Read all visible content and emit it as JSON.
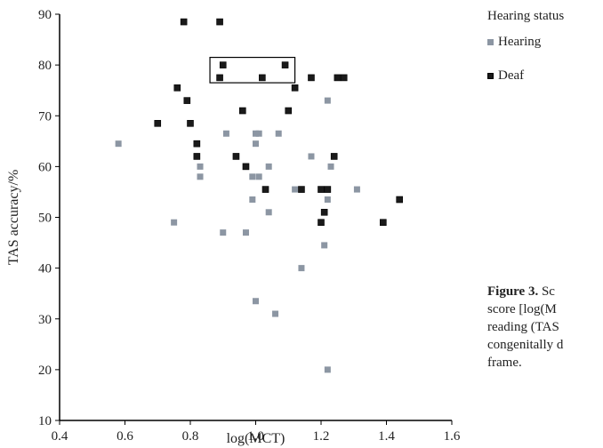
{
  "legend": {
    "title": "Hearing status",
    "items": [
      {
        "label": "Hearing",
        "color": "#8c96a3"
      },
      {
        "label": "Deaf",
        "color": "#1a1a1a"
      }
    ]
  },
  "caption": {
    "label": "Figure 3.",
    "line1": "Sc",
    "line2": "score [log(M",
    "line3": "reading (TAS",
    "line4": "congenitally d",
    "line5": "frame."
  },
  "chart_data": {
    "type": "scatter",
    "xlabel": "log(MCT)",
    "ylabel": "TAS accuracy/%",
    "xlim": [
      0.4,
      1.6
    ],
    "ylim": [
      10,
      90
    ],
    "x_ticks": [
      "0.4",
      "0.6",
      "0.8",
      "1.0",
      "1.2",
      "1.4",
      "1.6"
    ],
    "y_ticks": [
      "10",
      "20",
      "30",
      "40",
      "50",
      "60",
      "70",
      "80",
      "90"
    ],
    "series": [
      {
        "name": "Hearing",
        "color": "#8c96a3",
        "points": [
          [
            0.58,
            64.5
          ],
          [
            0.75,
            49
          ],
          [
            0.76,
            75.5
          ],
          [
            0.82,
            64.5
          ],
          [
            0.83,
            60
          ],
          [
            0.83,
            58
          ],
          [
            0.9,
            47
          ],
          [
            0.91,
            66.5
          ],
          [
            0.97,
            47
          ],
          [
            0.99,
            53.5
          ],
          [
            0.99,
            58
          ],
          [
            1.0,
            66.5
          ],
          [
            1.0,
            64.5
          ],
          [
            1.0,
            33.5
          ],
          [
            1.01,
            66.5
          ],
          [
            1.01,
            58
          ],
          [
            1.04,
            51
          ],
          [
            1.04,
            60
          ],
          [
            1.06,
            31
          ],
          [
            1.07,
            66.5
          ],
          [
            1.12,
            75.5
          ],
          [
            1.12,
            55.5
          ],
          [
            1.14,
            40
          ],
          [
            1.17,
            62
          ],
          [
            1.21,
            44.5
          ],
          [
            1.22,
            73
          ],
          [
            1.22,
            20
          ],
          [
            1.22,
            55.5
          ],
          [
            1.22,
            53.5
          ],
          [
            1.23,
            60
          ],
          [
            1.31,
            55.5
          ]
        ]
      },
      {
        "name": "Deaf",
        "color": "#1a1a1a",
        "points": [
          [
            0.7,
            68.5
          ],
          [
            0.76,
            75.5
          ],
          [
            0.78,
            88.5
          ],
          [
            0.79,
            73
          ],
          [
            0.8,
            68.5
          ],
          [
            0.82,
            64.5
          ],
          [
            0.82,
            62
          ],
          [
            0.89,
            88.5
          ],
          [
            0.89,
            77.5
          ],
          [
            0.9,
            80
          ],
          [
            0.94,
            62
          ],
          [
            0.96,
            71
          ],
          [
            0.97,
            60
          ],
          [
            1.02,
            77.5
          ],
          [
            1.03,
            55.5
          ],
          [
            1.09,
            80
          ],
          [
            1.1,
            71
          ],
          [
            1.12,
            75.5
          ],
          [
            1.14,
            55.5
          ],
          [
            1.17,
            77.5
          ],
          [
            1.2,
            55.5
          ],
          [
            1.2,
            49
          ],
          [
            1.21,
            51
          ],
          [
            1.22,
            55.5
          ],
          [
            1.24,
            62
          ],
          [
            1.25,
            77.5
          ],
          [
            1.27,
            77.5
          ],
          [
            1.39,
            49
          ],
          [
            1.44,
            53.5
          ]
        ]
      }
    ],
    "highlight_box": {
      "x_range": [
        0.86,
        1.12
      ],
      "y_range": [
        76.5,
        81.5
      ]
    }
  }
}
